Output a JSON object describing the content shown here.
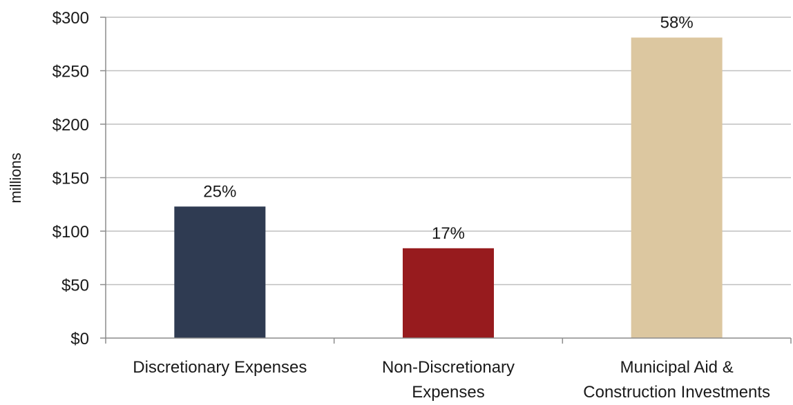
{
  "chart_data": {
    "type": "bar",
    "title": "",
    "xlabel": "",
    "ylabel": "millions",
    "ylim": [
      0,
      300
    ],
    "y_ticks": [
      0,
      50,
      100,
      150,
      200,
      250,
      300
    ],
    "y_tick_labels": [
      "$0",
      "$50",
      "$100",
      "$150",
      "$200",
      "$250",
      "$300"
    ],
    "grid": true,
    "legend": "none",
    "categories": [
      [
        "Discretionary Expenses"
      ],
      [
        "Non-Discretionary",
        "Expenses"
      ],
      [
        "Municipal Aid &",
        "Construction Investments"
      ]
    ],
    "values": [
      123,
      84,
      281
    ],
    "data_labels": [
      "25%",
      "17%",
      "58%"
    ],
    "colors": [
      "#2f3b52",
      "#971b1e",
      "#dcc7a0"
    ],
    "gridline_color": "#bfbfbf",
    "axis_color": "#8c8c8c"
  }
}
